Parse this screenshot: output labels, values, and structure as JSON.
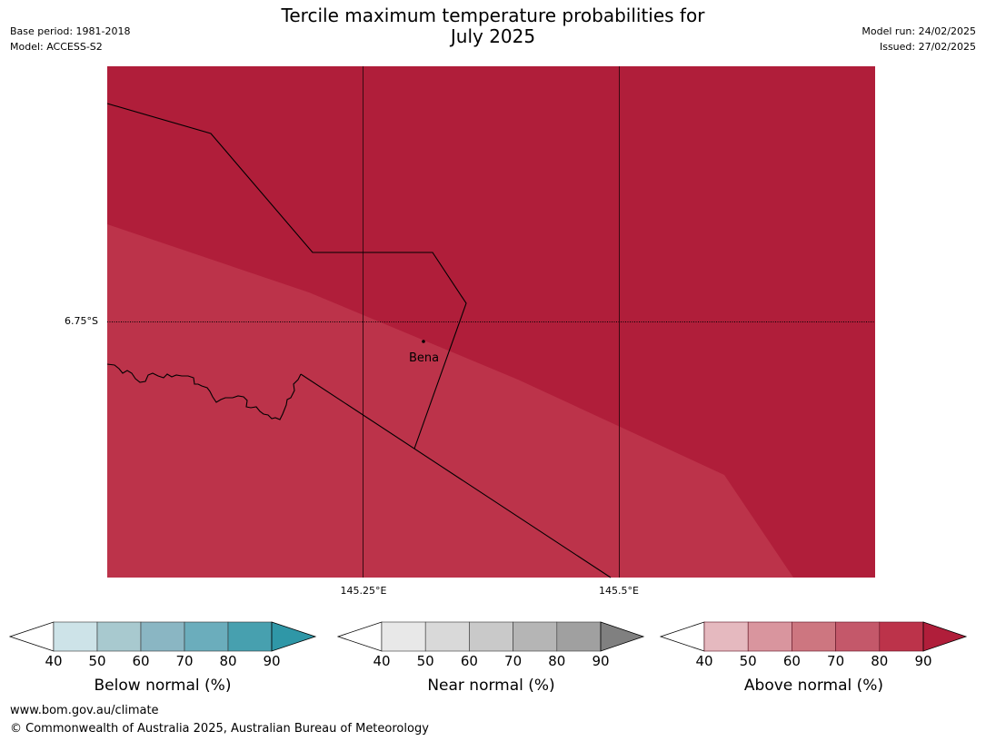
{
  "title_line1": "Tercile maximum temperature probabilities for",
  "title_line2": "July 2025",
  "base_period": "Base period: 1981-2018",
  "model": "Model: ACCESS-S2",
  "model_run": "Model run: 24/02/2025",
  "issued": "Issued: 27/02/2025",
  "map": {
    "place_label": "Bena",
    "lat_label": "6.75°S",
    "lon_labels": [
      "145.25°E",
      "145.5°E"
    ],
    "fill_colors": {
      "above_80_90": "#b01e3a",
      "above_70_80": "#bc334a"
    }
  },
  "legends": [
    {
      "label": "Below normal (%)",
      "ticks": [
        "40",
        "50",
        "60",
        "70",
        "80",
        "90"
      ],
      "colors": [
        "#ffffff",
        "#cde3e8",
        "#a8c9cf",
        "#8ab6c3",
        "#6badbc",
        "#47a0af",
        "#2f97a7"
      ]
    },
    {
      "label": "Near normal (%)",
      "ticks": [
        "40",
        "50",
        "60",
        "70",
        "80",
        "90"
      ],
      "colors": [
        "#ffffff",
        "#e8e8e8",
        "#d9d9d9",
        "#c9c9c9",
        "#b5b5b5",
        "#a0a0a0",
        "#808080"
      ]
    },
    {
      "label": "Above normal (%)",
      "ticks": [
        "40",
        "50",
        "60",
        "70",
        "80",
        "90"
      ],
      "colors": [
        "#ffffff",
        "#e5b9bf",
        "#d9959e",
        "#cd7680",
        "#c4586a",
        "#bc334a",
        "#b01e3a"
      ]
    }
  ],
  "footer": {
    "url": "www.bom.gov.au/climate",
    "copyright": "© Commonwealth of Australia 2025, Australian Bureau of Meteorology"
  }
}
